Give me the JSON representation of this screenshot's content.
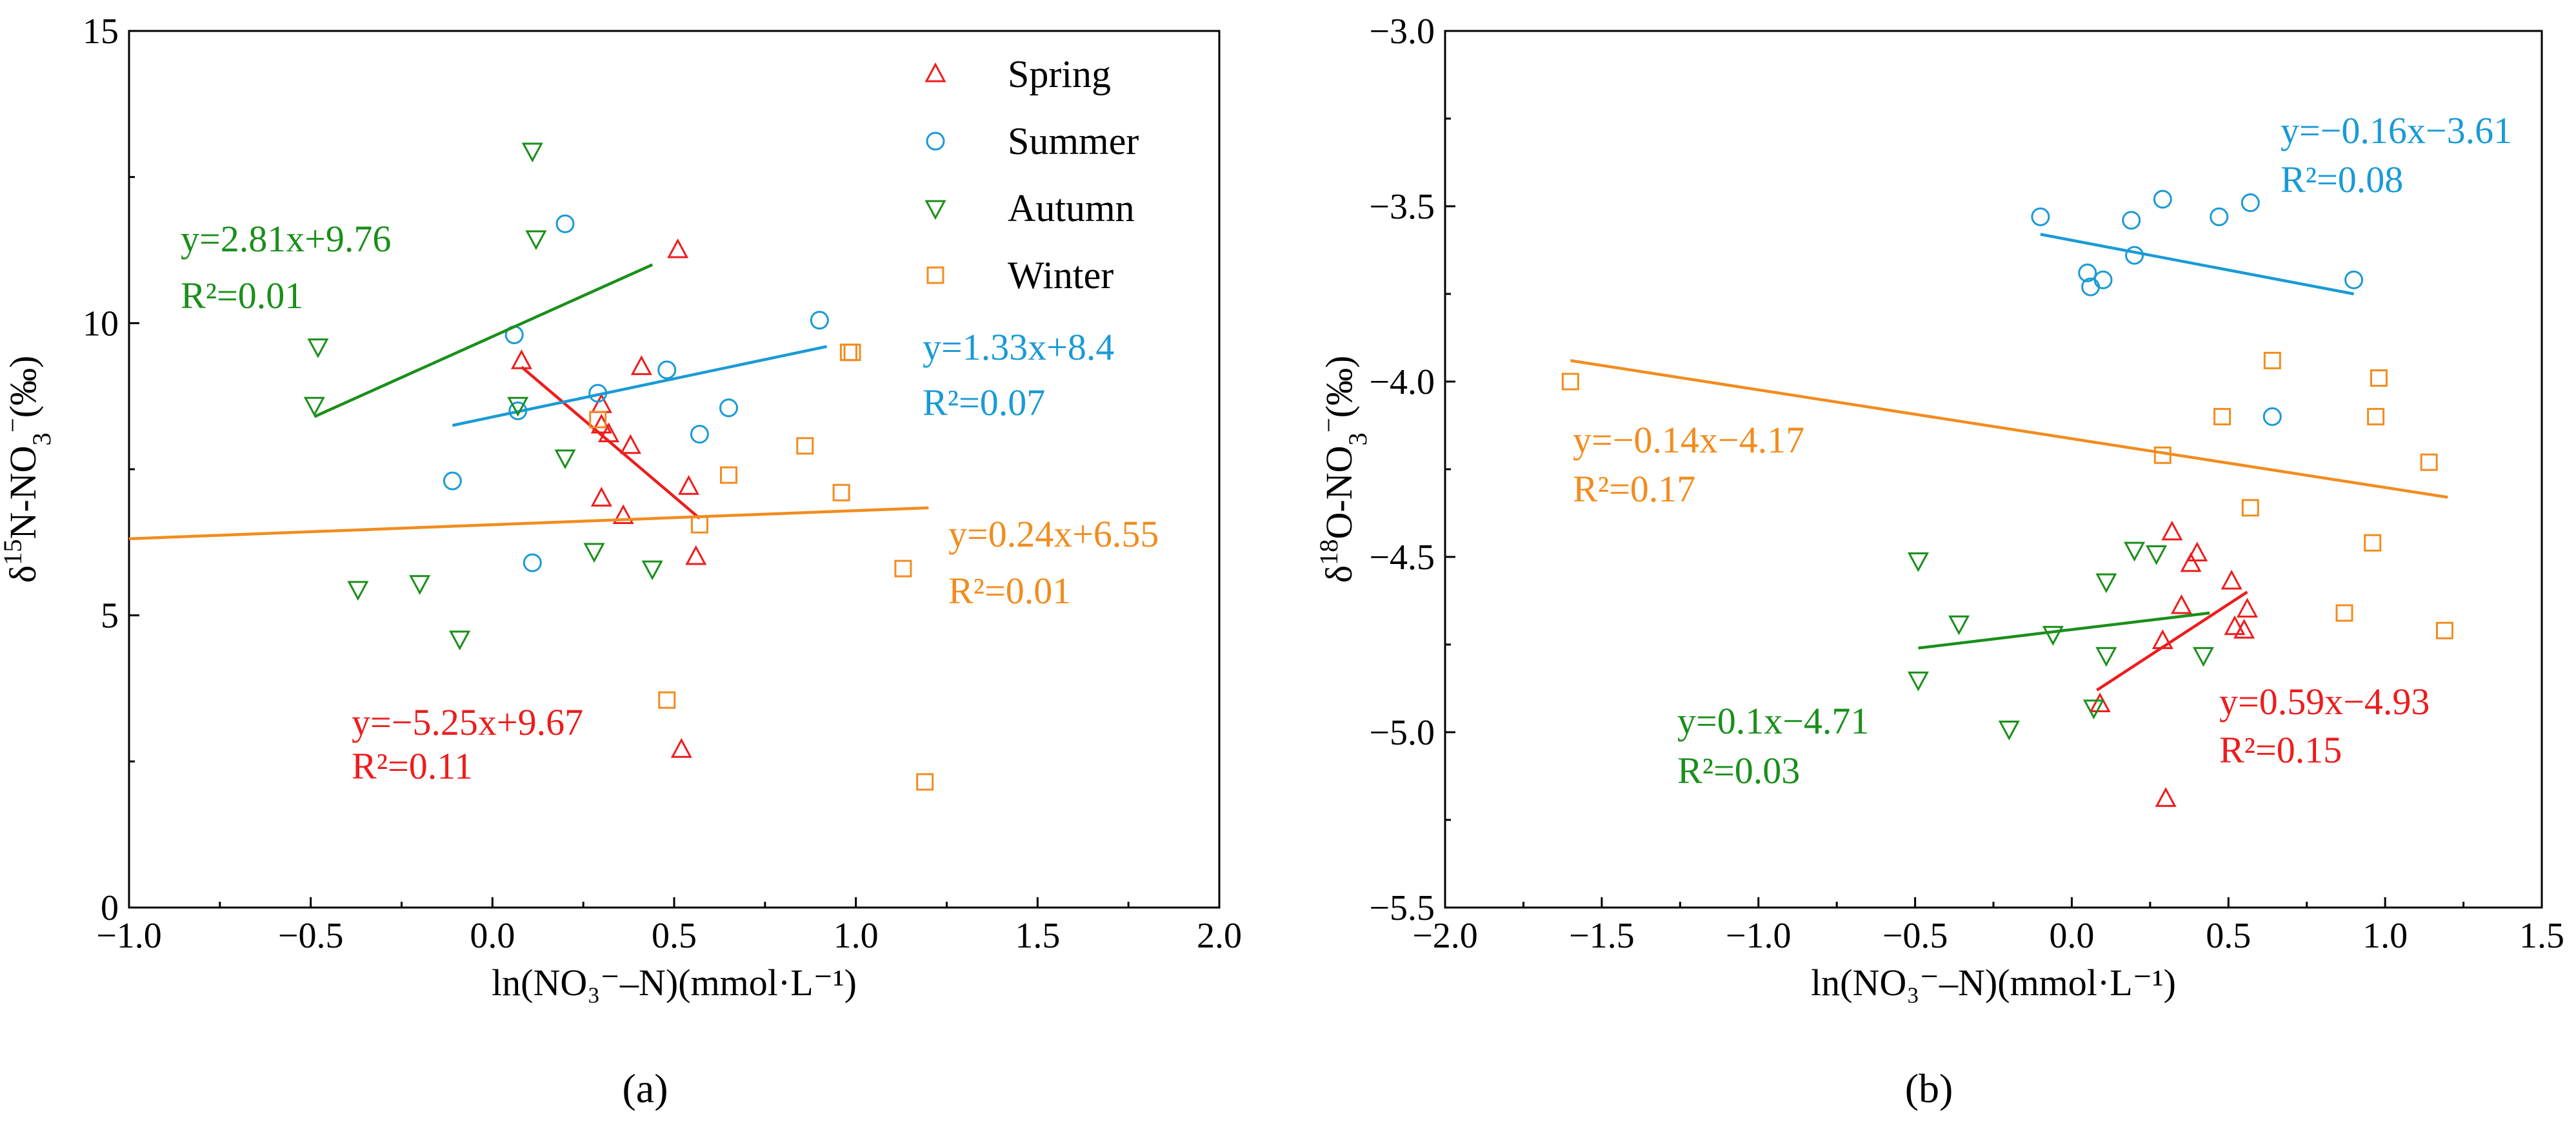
{
  "colors": {
    "spring": "#ee1c1c",
    "summer": "#1a9ad6",
    "autumn": "#1a8f1a",
    "winter": "#f28c1e",
    "axis": "#000000"
  },
  "chart_data": [
    {
      "id": "a",
      "type": "scatter",
      "panel_label": "(a)",
      "panel_letter": "a",
      "xlabel": "ln(NO₃⁻–N)(mmol·L⁻¹)",
      "ylabel_html": "δ<tspan baseline-shift=\"super\" font-size=\"70%\">15</tspan>N-NO<tspan baseline-shift=\"sub\" font-size=\"70%\">3</tspan><tspan baseline-shift=\"super\" font-size=\"70%\">−</tspan>(‰)",
      "xlim": [
        -1.0,
        2.0
      ],
      "ylim": [
        0,
        15
      ],
      "xticks": [
        -1.0,
        -0.5,
        0.0,
        0.5,
        1.0,
        1.5,
        2.0
      ],
      "xtick_labels": [
        "−1.0",
        "−0.5",
        "0.0",
        "0.5",
        "1.0",
        "1.5",
        "2.0"
      ],
      "yticks": [
        0,
        5,
        10,
        15
      ],
      "ytick_labels": [
        "0",
        "5",
        "10",
        "15"
      ],
      "legend": {
        "position": "top-right",
        "entries": [
          {
            "label": "Spring",
            "marker": "triangle-up",
            "color_key": "spring"
          },
          {
            "label": "Summer",
            "marker": "circle",
            "color_key": "summer"
          },
          {
            "label": "Autumn",
            "marker": "triangle-down",
            "color_key": "autumn"
          },
          {
            "label": "Winter",
            "marker": "square",
            "color_key": "winter"
          }
        ]
      },
      "series": [
        {
          "name": "Spring",
          "marker": "triangle-up",
          "color_key": "spring",
          "x": [
            0.08,
            0.51,
            0.3,
            0.3,
            0.32,
            0.38,
            0.41,
            0.36,
            0.3,
            0.54,
            0.56,
            0.52
          ],
          "y": [
            9.35,
            11.25,
            8.6,
            8.25,
            8.1,
            7.9,
            9.25,
            6.7,
            7.0,
            7.2,
            6.0,
            2.7
          ],
          "fit": {
            "x": [
              0.08,
              0.57
            ],
            "y": [
              9.25,
              6.66
            ]
          },
          "equation": "y=−5.25x+9.67",
          "r2": "R²=0.11"
        },
        {
          "name": "Summer",
          "marker": "circle",
          "color_key": "summer",
          "x": [
            0.06,
            0.07,
            0.2,
            0.29,
            0.48,
            0.65,
            0.57,
            0.9,
            -0.11,
            0.11
          ],
          "y": [
            9.8,
            8.5,
            11.7,
            8.8,
            9.2,
            8.55,
            8.1,
            10.05,
            7.3,
            5.9
          ],
          "fit": {
            "x": [
              -0.11,
              0.92
            ],
            "y": [
              8.25,
              9.6
            ]
          },
          "equation": "y=1.33x+8.4",
          "r2": "R²=0.07"
        },
        {
          "name": "Autumn",
          "marker": "triangle-down",
          "color_key": "autumn",
          "x": [
            0.11,
            0.12,
            -0.48,
            -0.49,
            0.07,
            0.2,
            0.28,
            -0.37,
            -0.2,
            0.44,
            -0.09
          ],
          "y": [
            12.95,
            11.45,
            9.6,
            8.6,
            8.6,
            7.7,
            6.1,
            5.45,
            5.55,
            5.8,
            4.6
          ],
          "fit": {
            "x": [
              -0.49,
              0.44
            ],
            "y": [
              8.4,
              11.0
            ]
          },
          "equation": "y=2.81x+9.76",
          "r2": "R²=0.01"
        },
        {
          "name": "Winter",
          "marker": "square",
          "color_key": "winter",
          "x": [
            0.99,
            0.98,
            0.29,
            0.86,
            0.65,
            0.96,
            0.57,
            1.13,
            0.48,
            1.19
          ],
          "y": [
            9.5,
            9.5,
            8.35,
            7.9,
            7.4,
            7.1,
            6.55,
            5.8,
            3.55,
            2.15
          ],
          "fit": {
            "x": [
              -1.0,
              1.2
            ],
            "y": [
              6.31,
              6.84
            ]
          },
          "equation": "y=0.24x+6.55",
          "r2": "R²=0.01"
        }
      ]
    },
    {
      "id": "b",
      "type": "scatter",
      "panel_label": "(b)",
      "panel_letter": "b",
      "xlabel": "ln(NO₃⁻–N)(mmol·L⁻¹)",
      "ylabel_html": "δ<tspan baseline-shift=\"super\" font-size=\"70%\">18</tspan>O-NO<tspan baseline-shift=\"sub\" font-size=\"70%\">3</tspan><tspan baseline-shift=\"super\" font-size=\"70%\">−</tspan>(‰)",
      "xlim": [
        -2.0,
        1.5
      ],
      "ylim": [
        -5.5,
        -3.0
      ],
      "xticks": [
        -2.0,
        -1.5,
        -1.0,
        -0.5,
        0.0,
        0.5,
        1.0,
        1.5
      ],
      "xtick_labels": [
        "−2.0",
        "−1.5",
        "−1.0",
        "−0.5",
        "0.0",
        "0.5",
        "1.0",
        "1.5"
      ],
      "yticks": [
        -5.5,
        -5.0,
        -4.5,
        -4.0,
        -3.5,
        -3.0
      ],
      "ytick_labels": [
        "−5.5",
        "−5.0",
        "−4.5",
        "−4.0",
        "−3.5",
        "−3.0"
      ],
      "series": [
        {
          "name": "Spring",
          "marker": "triangle-up",
          "color_key": "spring",
          "x": [
            0.32,
            0.4,
            0.38,
            0.51,
            0.35,
            0.56,
            0.52,
            0.55,
            0.29,
            0.09,
            0.3
          ],
          "y": [
            -4.43,
            -4.49,
            -4.52,
            -4.57,
            -4.64,
            -4.65,
            -4.7,
            -4.71,
            -4.74,
            -4.92,
            -5.19
          ],
          "fit": {
            "x": [
              0.08,
              0.56
            ],
            "y": [
              -4.88,
              -4.6
            ]
          },
          "equation": "y=0.59x−4.93",
          "r2": "R²=0.15"
        },
        {
          "name": "Summer",
          "marker": "circle",
          "color_key": "summer",
          "x": [
            -0.1,
            0.29,
            0.57,
            0.47,
            0.19,
            0.2,
            0.05,
            0.1,
            0.06,
            0.9,
            0.64
          ],
          "y": [
            -3.53,
            -3.48,
            -3.49,
            -3.53,
            -3.54,
            -3.64,
            -3.69,
            -3.71,
            -3.73,
            -3.71,
            -4.1
          ],
          "fit": {
            "x": [
              -0.1,
              0.9
            ],
            "y": [
              -3.58,
              -3.75
            ]
          },
          "equation": "y=−0.16x−3.61",
          "r2": "R²=0.08"
        },
        {
          "name": "Autumn",
          "marker": "triangle-down",
          "color_key": "autumn",
          "x": [
            -0.49,
            0.2,
            0.27,
            0.11,
            -0.36,
            -0.06,
            0.11,
            0.42,
            -0.49,
            -0.2,
            0.07
          ],
          "y": [
            -4.51,
            -4.48,
            -4.49,
            -4.57,
            -4.69,
            -4.72,
            -4.78,
            -4.78,
            -4.85,
            -4.99,
            -4.93
          ],
          "fit": {
            "x": [
              -0.49,
              0.44
            ],
            "y": [
              -4.76,
              -4.66
            ]
          },
          "equation": "y=0.1x−4.71",
          "r2": "R²=0.03"
        },
        {
          "name": "Winter",
          "marker": "square",
          "color_key": "winter",
          "x": [
            -1.6,
            0.64,
            0.98,
            0.97,
            0.48,
            0.29,
            1.14,
            0.57,
            0.96,
            0.87,
            1.19
          ],
          "y": [
            -4.0,
            -3.94,
            -3.99,
            -4.1,
            -4.1,
            -4.21,
            -4.23,
            -4.36,
            -4.46,
            -4.66,
            -4.71
          ],
          "fit": {
            "x": [
              -1.6,
              1.2
            ],
            "y": [
              -3.94,
              -4.33
            ]
          },
          "equation": "y=−0.14x−4.17",
          "r2": "R²=0.17"
        }
      ]
    }
  ]
}
